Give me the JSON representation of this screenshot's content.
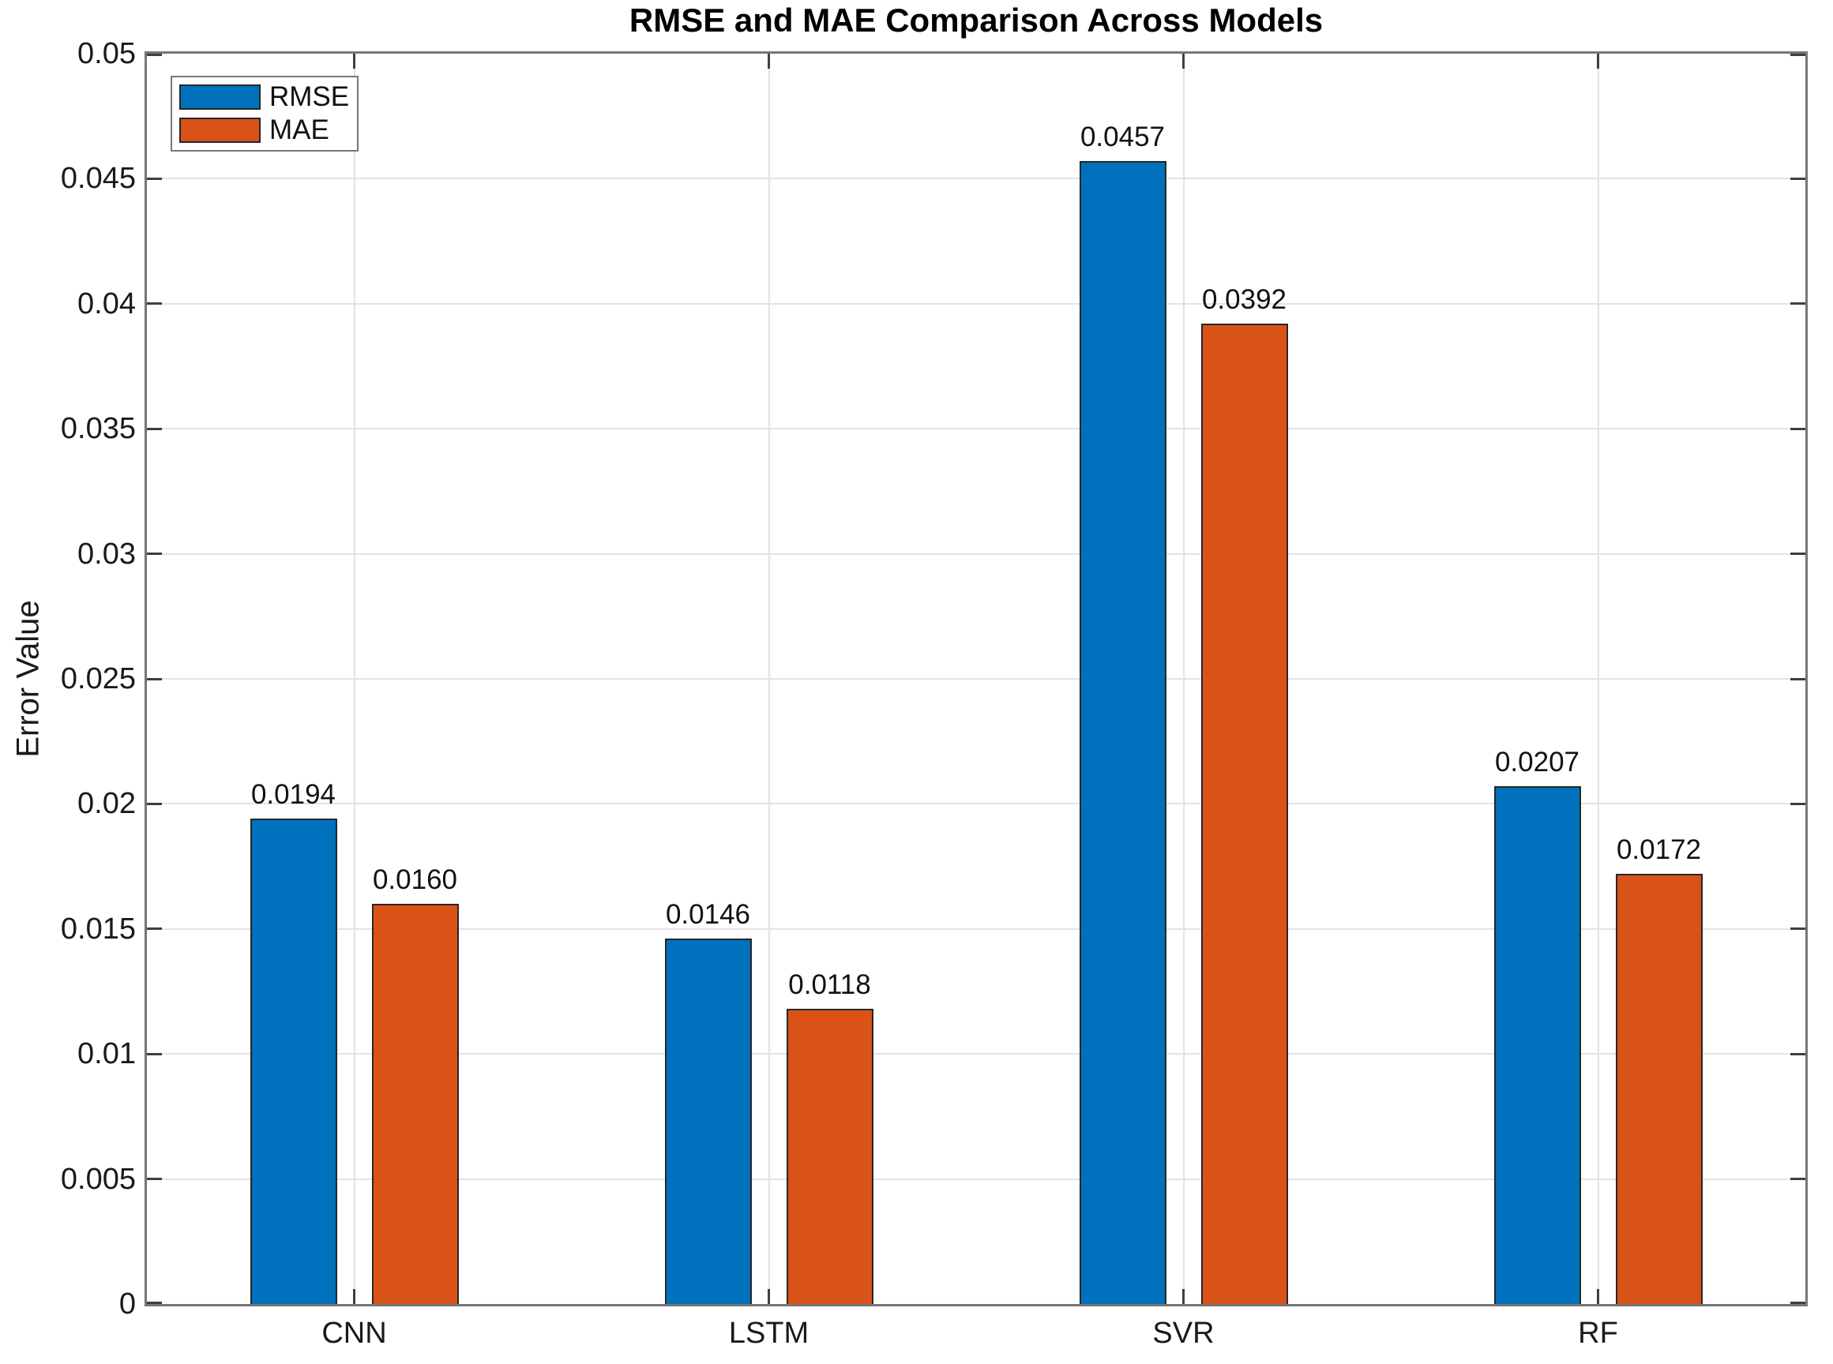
{
  "chart_data": {
    "type": "bar",
    "title": "RMSE and MAE Comparison Across Models",
    "xlabel": "",
    "ylabel": "Error Value",
    "categories": [
      "CNN",
      "LSTM",
      "SVR",
      "RF"
    ],
    "series": [
      {
        "name": "RMSE",
        "color": "#0072BD",
        "values": [
          0.0194,
          0.0146,
          0.0457,
          0.0207
        ],
        "value_labels": [
          "0.0194",
          "0.0146",
          "0.0457",
          "0.0207"
        ]
      },
      {
        "name": "MAE",
        "color": "#D95319",
        "values": [
          0.016,
          0.0118,
          0.0392,
          0.0172
        ],
        "value_labels": [
          "0.0160",
          "0.0118",
          "0.0392",
          "0.0172"
        ]
      }
    ],
    "ylim": [
      0,
      0.05
    ],
    "ytick_step": 0.005,
    "y_tick_labels": [
      "0",
      "0.005",
      "0.01",
      "0.015",
      "0.02",
      "0.025",
      "0.03",
      "0.035",
      "0.04",
      "0.045",
      "0.05"
    ],
    "grid": true,
    "legend_position": "top-left",
    "colors": {
      "bar_edge": "#262626",
      "grid": "#e3e3e3",
      "axis_box": "#767676",
      "tick_mark": "#3f3f3f",
      "text": "#1a1a1a"
    }
  }
}
